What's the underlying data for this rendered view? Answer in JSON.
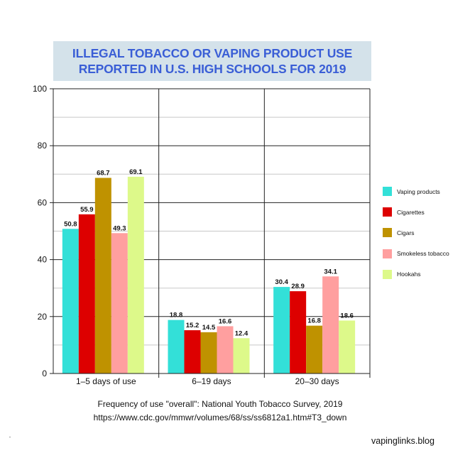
{
  "chart_data": {
    "type": "bar",
    "title": [
      "ILLEGAL TOBACCO OR VAPING PRODUCT USE",
      "REPORTED IN U.S. HIGH SCHOOLS FOR 2019"
    ],
    "categories": [
      "1–5 days of use",
      "6–19 days",
      "20–30 days"
    ],
    "series": [
      {
        "name": "Vaping products",
        "color": "#33e0d8",
        "values": [
          50.8,
          18.8,
          30.4
        ]
      },
      {
        "name": "Cigarettes",
        "color": "#dd0000",
        "values": [
          55.9,
          15.2,
          28.9
        ]
      },
      {
        "name": "Cigars",
        "color": "#bf9200",
        "values": [
          68.7,
          14.5,
          16.8
        ]
      },
      {
        "name": "Smokeless tobacco",
        "color": "#ff9f9f",
        "values": [
          49.3,
          16.6,
          34.1
        ]
      },
      {
        "name": "Hookahs",
        "color": "#ddf98a",
        "values": [
          69.1,
          12.4,
          18.6
        ]
      }
    ],
    "ylim": [
      0,
      100
    ],
    "yticks": [
      0,
      20,
      40,
      60,
      80,
      100
    ],
    "xlabel": "",
    "ylabel": "",
    "grid": true,
    "legend_position": "right"
  },
  "caption": {
    "line1": "Frequency of use \"overall\": National Youth Tobacco Survey, 2019",
    "line2": "https://www.cdc.gov/mmwr/volumes/68/ss/ss6812a1.htm#T3_down"
  },
  "credit": "vapinglinks.blog"
}
